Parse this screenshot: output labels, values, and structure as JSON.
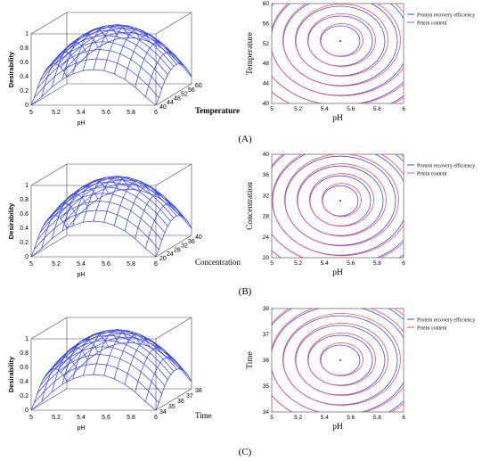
{
  "colors": {
    "surface": "#2f3bff",
    "series_protein_recovery": "#3c4bff",
    "series_protein_content": "#ff4b5a",
    "axis": "#222222",
    "box": "#444444"
  },
  "panel_labels": [
    "(A)",
    "(B)",
    "(C)"
  ],
  "chart_data": [
    {
      "type": "surface3d",
      "panel": "A",
      "zlabel": "Desirability",
      "xlabel": "pH",
      "ylabel": "Temperature",
      "x_ticks": [
        "5",
        "5.2",
        "5.4",
        "5.6",
        "5.8",
        "6"
      ],
      "y_ticks": [
        "40",
        "44",
        "48",
        "52",
        "56",
        "60"
      ],
      "z_ticks": [
        "0",
        "0.2",
        "0.4",
        "0.6",
        "0.8",
        "1"
      ],
      "xlim": [
        5,
        6
      ],
      "ylim": [
        40,
        60
      ],
      "zlim": [
        0,
        1
      ],
      "peak": {
        "x": 5.5,
        "y": 53,
        "z": 1.0
      }
    },
    {
      "type": "contour",
      "panel": "A",
      "xlabel": "pH",
      "ylabel": "Temperature",
      "x_ticks": [
        "5",
        "5.2",
        "5.4",
        "5.6",
        "5.8",
        "6"
      ],
      "y_ticks": [
        "40",
        "44",
        "48",
        "52",
        "56",
        "60"
      ],
      "xlim": [
        5,
        6
      ],
      "ylim": [
        40,
        60
      ],
      "center": {
        "x": 5.52,
        "y": 52.5
      },
      "legend": [
        "Protein recovery efficiency",
        "Prtein content"
      ]
    },
    {
      "type": "surface3d",
      "panel": "B",
      "zlabel": "Desirability",
      "xlabel": "pH",
      "ylabel": "Concentration",
      "x_ticks": [
        "5",
        "5.2",
        "5.4",
        "5.6",
        "5.8",
        "6"
      ],
      "y_ticks": [
        "20",
        "24",
        "28",
        "32",
        "36",
        "40"
      ],
      "z_ticks": [
        "0",
        "0.2",
        "0.4",
        "0.6",
        "0.8",
        "1"
      ],
      "xlim": [
        5,
        6
      ],
      "ylim": [
        20,
        40
      ],
      "zlim": [
        0,
        1
      ],
      "peak": {
        "x": 5.5,
        "y": 31,
        "z": 1.0
      }
    },
    {
      "type": "contour",
      "panel": "B",
      "xlabel": "pH",
      "ylabel": "Concentration",
      "x_ticks": [
        "5",
        "5.2",
        "5.4",
        "5.6",
        "5.8",
        "6"
      ],
      "y_ticks": [
        "20",
        "24",
        "28",
        "32",
        "36",
        "40"
      ],
      "xlim": [
        5,
        6
      ],
      "ylim": [
        20,
        40
      ],
      "center": {
        "x": 5.52,
        "y": 31
      },
      "legend": [
        "Protein recovery efficiency",
        "Prtein content"
      ]
    },
    {
      "type": "surface3d",
      "panel": "C",
      "zlabel": "Desirability",
      "xlabel": "pH",
      "ylabel": "Time",
      "x_ticks": [
        "5",
        "5.2",
        "5.4",
        "5.6",
        "5.8",
        "6"
      ],
      "y_ticks": [
        "34",
        "35",
        "36",
        "37",
        "38"
      ],
      "z_ticks": [
        "0",
        "0.2",
        "0.4",
        "0.6",
        "0.8",
        "1"
      ],
      "xlim": [
        5,
        6
      ],
      "ylim": [
        34,
        38
      ],
      "zlim": [
        0,
        1
      ],
      "peak": {
        "x": 5.5,
        "y": 36,
        "z": 1.0
      }
    },
    {
      "type": "contour",
      "panel": "C",
      "xlabel": "pH",
      "ylabel": "Time",
      "x_ticks": [
        "5",
        "5.2",
        "5.4",
        "5.6",
        "5.8",
        "6"
      ],
      "y_ticks": [
        "34",
        "35",
        "36",
        "37",
        "38"
      ],
      "xlim": [
        5,
        6
      ],
      "ylim": [
        34,
        38
      ],
      "center": {
        "x": 5.52,
        "y": 36
      },
      "legend": [
        "Protein recovery efficiency",
        "Prtein content"
      ]
    }
  ]
}
